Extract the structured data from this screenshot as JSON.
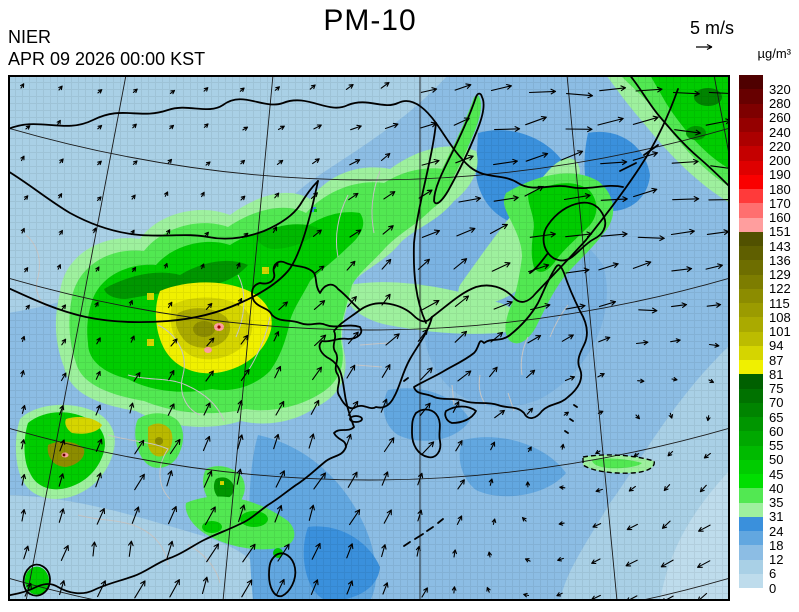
{
  "header": {
    "title": "PM-10",
    "agency": "NIER",
    "datetime": "APR 09 2026 00:00 KST"
  },
  "wind_legend": {
    "label": "5 m/s"
  },
  "colorbar": {
    "unit": "µg/m³",
    "cells": [
      {
        "label": "320",
        "color": "#4f0000"
      },
      {
        "label": "280",
        "color": "#670000"
      },
      {
        "label": "260",
        "color": "#7e0000"
      },
      {
        "label": "240",
        "color": "#950000"
      },
      {
        "label": "220",
        "color": "#ac0000"
      },
      {
        "label": "200",
        "color": "#c50000"
      },
      {
        "label": "190",
        "color": "#df0000"
      },
      {
        "label": "180",
        "color": "#fa0000"
      },
      {
        "label": "170",
        "color": "#ff3a3a"
      },
      {
        "label": "160",
        "color": "#ff6f6f"
      },
      {
        "label": "151",
        "color": "#ff9e9e"
      },
      {
        "label": "143",
        "color": "#515100"
      },
      {
        "label": "136",
        "color": "#5f5f00"
      },
      {
        "label": "129",
        "color": "#6e6e00"
      },
      {
        "label": "122",
        "color": "#7d7d00"
      },
      {
        "label": "115",
        "color": "#8c8c00"
      },
      {
        "label": "108",
        "color": "#9b9b00"
      },
      {
        "label": "101",
        "color": "#aaaa00"
      },
      {
        "label": "94",
        "color": "#bcbc00"
      },
      {
        "label": "87",
        "color": "#d5d500"
      },
      {
        "label": "81",
        "color": "#f0f000"
      },
      {
        "label": "75",
        "color": "#006000"
      },
      {
        "label": "70",
        "color": "#007200"
      },
      {
        "label": "65",
        "color": "#008400"
      },
      {
        "label": "60",
        "color": "#009600"
      },
      {
        "label": "55",
        "color": "#00a800"
      },
      {
        "label": "50",
        "color": "#00ba00"
      },
      {
        "label": "45",
        "color": "#00cc00"
      },
      {
        "label": "40",
        "color": "#00de00"
      },
      {
        "label": "35",
        "color": "#52e852"
      },
      {
        "label": "31",
        "color": "#9ef09e"
      },
      {
        "label": "24",
        "color": "#3a90dc"
      },
      {
        "label": "18",
        "color": "#62a7e0"
      },
      {
        "label": "12",
        "color": "#8cbde4"
      },
      {
        "label": "6",
        "color": "#a9d0e6"
      },
      {
        "label": "0",
        "color": "#bedcec"
      }
    ]
  }
}
